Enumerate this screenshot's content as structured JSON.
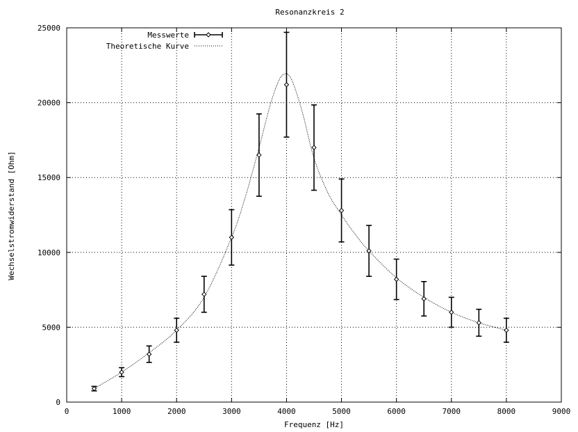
{
  "chart_data": {
    "type": "line",
    "title": "Resonanzkreis 2",
    "xlabel": "Frequenz [Hz]",
    "ylabel": "Wechselstromwiderstand [Ohm]",
    "xlim": [
      0,
      9000
    ],
    "ylim": [
      0,
      25000
    ],
    "x_ticks": [
      0,
      1000,
      2000,
      3000,
      4000,
      5000,
      6000,
      7000,
      8000,
      9000
    ],
    "y_ticks": [
      0,
      5000,
      10000,
      15000,
      20000,
      25000
    ],
    "grid": true,
    "legend_position": "top-left",
    "series": [
      {
        "name": "Messwerte",
        "style": "points-with-errorbars",
        "color": "#000000",
        "points": [
          {
            "x": 500,
            "y": 900,
            "yerr": 150
          },
          {
            "x": 1000,
            "y": 2000,
            "yerr": 300
          },
          {
            "x": 1500,
            "y": 3200,
            "yerr": 550
          },
          {
            "x": 2000,
            "y": 4800,
            "yerr": 800
          },
          {
            "x": 2500,
            "y": 7200,
            "yerr": 1200
          },
          {
            "x": 3000,
            "y": 11000,
            "yerr": 1850
          },
          {
            "x": 3500,
            "y": 16500,
            "yerr": 2750
          },
          {
            "x": 4000,
            "y": 21200,
            "yerr": 3500
          },
          {
            "x": 4500,
            "y": 17000,
            "yerr": 2850
          },
          {
            "x": 5000,
            "y": 12800,
            "yerr": 2100
          },
          {
            "x": 5500,
            "y": 10100,
            "yerr": 1700
          },
          {
            "x": 6000,
            "y": 8200,
            "yerr": 1350
          },
          {
            "x": 6500,
            "y": 6900,
            "yerr": 1150
          },
          {
            "x": 7000,
            "y": 6000,
            "yerr": 1000
          },
          {
            "x": 7500,
            "y": 5300,
            "yerr": 900
          },
          {
            "x": 8000,
            "y": 4800,
            "yerr": 800
          }
        ]
      },
      {
        "name": "Theoretische Kurve",
        "style": "dotted-line",
        "color": "#000000",
        "x": [
          500,
          1000,
          1500,
          2000,
          2500,
          3000,
          3250,
          3500,
          3700,
          3850,
          3950,
          4050,
          4150,
          4300,
          4500,
          4750,
          5000,
          5250,
          5500,
          6000,
          6500,
          7000,
          7500,
          8000
        ],
        "y": [
          900,
          2000,
          3300,
          4800,
          7000,
          11000,
          13700,
          17000,
          19800,
          21400,
          21900,
          21800,
          21000,
          19200,
          16300,
          14000,
          12500,
          11200,
          10100,
          8300,
          7000,
          6000,
          5300,
          4800
        ]
      }
    ]
  }
}
